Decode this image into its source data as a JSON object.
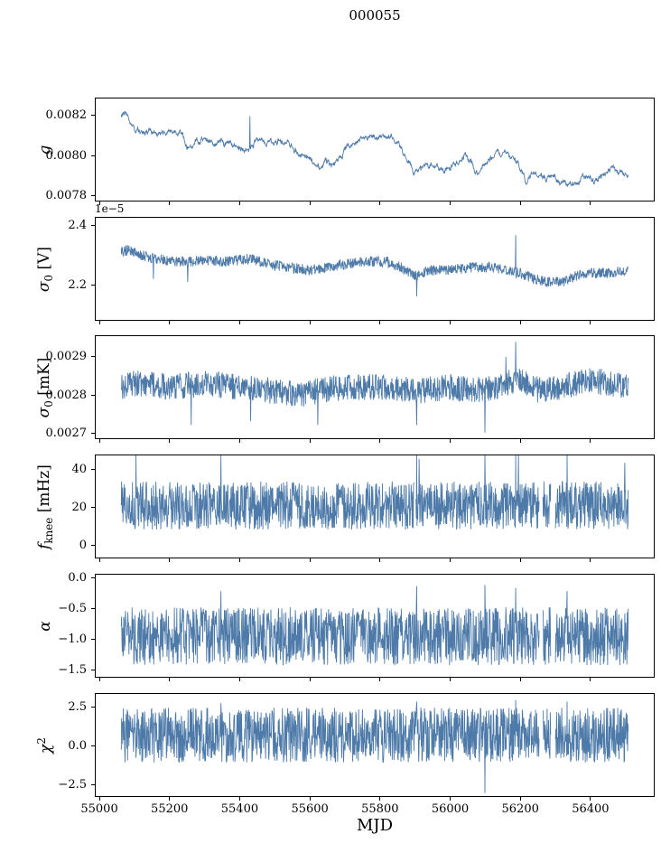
{
  "title": "000055",
  "line_color": "#4d7aa8",
  "spine_color": "#000000",
  "chart_data": {
    "type": "line",
    "title": "000055",
    "xlabel": "MJD",
    "legend": "none",
    "grid": false,
    "x": {
      "label": "MJD",
      "lim": [
        54987,
        56583
      ],
      "ticks": [
        55000,
        55200,
        55400,
        55600,
        55800,
        56000,
        56200,
        56400
      ],
      "data_range": [
        55060,
        56510
      ]
    },
    "panels": [
      {
        "name": "g",
        "ylabel": "g",
        "label_segments": [
          {
            "t": "g",
            "i": true
          }
        ],
        "ylim": [
          0.00777,
          0.00829
        ],
        "yticks": [
          {
            "v": 0.0078,
            "l": "0.0078"
          },
          {
            "v": 0.008,
            "l": "0.0080"
          },
          {
            "v": 0.0082,
            "l": "0.0082"
          }
        ],
        "offset": "",
        "noise": 2e-05,
        "ar": 0.85,
        "spikes": [
          [
            55428,
            0.0082
          ]
        ],
        "gaps": [],
        "mean": [
          [
            55060,
            0.0082
          ],
          [
            55072,
            0.00823
          ],
          [
            55085,
            0.00818
          ],
          [
            55100,
            0.00814
          ],
          [
            55130,
            0.00812
          ],
          [
            55160,
            0.00811
          ],
          [
            55190,
            0.00812
          ],
          [
            55215,
            0.00811
          ],
          [
            55235,
            0.00809
          ],
          [
            55250,
            0.00804
          ],
          [
            55262,
            0.00806
          ],
          [
            55285,
            0.00808
          ],
          [
            55310,
            0.00807
          ],
          [
            55340,
            0.00806
          ],
          [
            55370,
            0.00805
          ],
          [
            55400,
            0.00804
          ],
          [
            55425,
            0.00803
          ],
          [
            55445,
            0.00807
          ],
          [
            55465,
            0.00805
          ],
          [
            55490,
            0.00807
          ],
          [
            55510,
            0.00808
          ],
          [
            55530,
            0.00805
          ],
          [
            55555,
            0.00802
          ],
          [
            55580,
            0.008
          ],
          [
            55600,
            0.00797
          ],
          [
            55615,
            0.00794
          ],
          [
            55630,
            0.00793
          ],
          [
            55645,
            0.00799
          ],
          [
            55658,
            0.00795
          ],
          [
            55672,
            0.00796
          ],
          [
            55690,
            0.008
          ],
          [
            55710,
            0.00806
          ],
          [
            55730,
            0.00808
          ],
          [
            55755,
            0.00808
          ],
          [
            55775,
            0.0081
          ],
          [
            55800,
            0.0081
          ],
          [
            55825,
            0.00809
          ],
          [
            55850,
            0.00806
          ],
          [
            55872,
            0.00801
          ],
          [
            55895,
            0.00792
          ],
          [
            55910,
            0.00791
          ],
          [
            55930,
            0.00794
          ],
          [
            55950,
            0.00795
          ],
          [
            55975,
            0.00793
          ],
          [
            56000,
            0.00794
          ],
          [
            56025,
            0.00798
          ],
          [
            56045,
            0.008
          ],
          [
            56065,
            0.00795
          ],
          [
            56080,
            0.00792
          ],
          [
            56100,
            0.00796
          ],
          [
            56120,
            0.00799
          ],
          [
            56140,
            0.008
          ],
          [
            56160,
            0.00801
          ],
          [
            56180,
            0.00798
          ],
          [
            56200,
            0.00794
          ],
          [
            56218,
            0.00787
          ],
          [
            56235,
            0.00789
          ],
          [
            56255,
            0.00791
          ],
          [
            56275,
            0.00788
          ],
          [
            56295,
            0.0079
          ],
          [
            56315,
            0.00786
          ],
          [
            56335,
            0.00787
          ],
          [
            56355,
            0.00785
          ],
          [
            56375,
            0.00788
          ],
          [
            56395,
            0.00789
          ],
          [
            56415,
            0.00786
          ],
          [
            56435,
            0.0079
          ],
          [
            56455,
            0.00793
          ],
          [
            56475,
            0.00792
          ],
          [
            56495,
            0.00791
          ],
          [
            56510,
            0.00789
          ]
        ]
      },
      {
        "name": "sigma0-V",
        "ylabel": "σ0 [V]",
        "label_segments": [
          {
            "t": "σ",
            "i": true
          },
          {
            "t": "0",
            "sub": true
          },
          {
            "t": " [V]"
          }
        ],
        "ylim": [
          2.08,
          2.43
        ],
        "yticks": [
          {
            "v": 2.2,
            "l": "2.2"
          },
          {
            "v": 2.4,
            "l": "2.4"
          }
        ],
        "offset": "1e−5",
        "noise": 0.018,
        "ar": 0,
        "spikes": [
          [
            55152,
            2.22
          ],
          [
            55250,
            2.21
          ],
          [
            55905,
            2.16
          ],
          [
            56188,
            2.37
          ]
        ],
        "gaps": [],
        "mean": [
          [
            55060,
            2.31
          ],
          [
            55080,
            2.32
          ],
          [
            55120,
            2.3
          ],
          [
            55160,
            2.29
          ],
          [
            55200,
            2.28
          ],
          [
            55260,
            2.28
          ],
          [
            55300,
            2.285
          ],
          [
            55360,
            2.28
          ],
          [
            55430,
            2.29
          ],
          [
            55480,
            2.27
          ],
          [
            55540,
            2.26
          ],
          [
            55600,
            2.25
          ],
          [
            55650,
            2.26
          ],
          [
            55700,
            2.27
          ],
          [
            55760,
            2.28
          ],
          [
            55820,
            2.28
          ],
          [
            55860,
            2.26
          ],
          [
            55900,
            2.23
          ],
          [
            55940,
            2.25
          ],
          [
            56000,
            2.25
          ],
          [
            56060,
            2.26
          ],
          [
            56120,
            2.26
          ],
          [
            56160,
            2.25
          ],
          [
            56200,
            2.24
          ],
          [
            56240,
            2.22
          ],
          [
            56280,
            2.21
          ],
          [
            56320,
            2.21
          ],
          [
            56360,
            2.23
          ],
          [
            56400,
            2.24
          ],
          [
            56450,
            2.24
          ],
          [
            56510,
            2.25
          ]
        ]
      },
      {
        "name": "sigma0-mK",
        "ylabel": "σ0 [mK]",
        "label_segments": [
          {
            "t": "σ",
            "i": true
          },
          {
            "t": "0",
            "sub": true
          },
          {
            "t": " [mK]"
          }
        ],
        "ylim": [
          0.002685,
          0.002955
        ],
        "yticks": [
          {
            "v": 0.0027,
            "l": "0.0027"
          },
          {
            "v": 0.0028,
            "l": "0.0028"
          },
          {
            "v": 0.0029,
            "l": "0.0029"
          }
        ],
        "offset": "",
        "noise": 3.5e-05,
        "ar": 0,
        "spikes": [
          [
            55260,
            0.00272
          ],
          [
            55430,
            0.00273
          ],
          [
            55622,
            0.00272
          ],
          [
            55905,
            0.00272
          ],
          [
            56100,
            0.0027
          ],
          [
            56160,
            0.0029
          ],
          [
            56188,
            0.00294
          ]
        ],
        "gaps": [],
        "mean": [
          [
            55060,
            0.00282
          ],
          [
            55100,
            0.00283
          ],
          [
            55200,
            0.00282
          ],
          [
            55300,
            0.00283
          ],
          [
            55400,
            0.00282
          ],
          [
            55500,
            0.00281
          ],
          [
            55560,
            0.0028
          ],
          [
            55620,
            0.00281
          ],
          [
            55700,
            0.00282
          ],
          [
            55800,
            0.00282
          ],
          [
            55900,
            0.00281
          ],
          [
            56000,
            0.00282
          ],
          [
            56100,
            0.00281
          ],
          [
            56160,
            0.00283
          ],
          [
            56200,
            0.00284
          ],
          [
            56260,
            0.00281
          ],
          [
            56320,
            0.00282
          ],
          [
            56400,
            0.00284
          ],
          [
            56450,
            0.00283
          ],
          [
            56510,
            0.00282
          ]
        ]
      },
      {
        "name": "fknee",
        "ylabel": "fknee [mHz]",
        "label_segments": [
          {
            "t": "f",
            "i": true
          },
          {
            "t": "knee",
            "sub": true
          },
          {
            "t": " [mHz]"
          }
        ],
        "ylim": [
          -7,
          48
        ],
        "yticks": [
          {
            "v": 0,
            "l": "0"
          },
          {
            "v": 20,
            "l": "20"
          },
          {
            "v": 40,
            "l": "40"
          }
        ],
        "offset": "",
        "noise": 13,
        "ar": 0,
        "spikes": [
          [
            55102,
            50
          ],
          [
            55345,
            52
          ],
          [
            55905,
            50
          ],
          [
            55912,
            46
          ],
          [
            56100,
            50
          ],
          [
            56188,
            52
          ],
          [
            56196,
            48
          ],
          [
            56335,
            50
          ],
          [
            56500,
            44
          ]
        ],
        "gaps": [
          [
            55897,
            55902
          ],
          [
            56255,
            56266
          ],
          [
            56288,
            56302
          ]
        ],
        "mean": [
          [
            55060,
            21
          ],
          [
            56510,
            21
          ]
        ]
      },
      {
        "name": "alpha",
        "ylabel": "α",
        "label_segments": [
          {
            "t": "α",
            "i": true
          }
        ],
        "ylim": [
          -1.62,
          0.07
        ],
        "yticks": [
          {
            "v": 0,
            "l": "0.0"
          },
          {
            "v": -0.5,
            "l": "−0.5"
          },
          {
            "v": -1,
            "l": "−1.0"
          },
          {
            "v": -1.5,
            "l": "−1.5"
          }
        ],
        "offset": "",
        "noise": 0.48,
        "ar": 0,
        "spikes": [
          [
            55345,
            -0.2
          ],
          [
            55905,
            -0.12
          ],
          [
            56100,
            -0.1
          ],
          [
            56188,
            -0.15
          ],
          [
            56335,
            -0.2
          ]
        ],
        "gaps": [
          [
            56255,
            56266
          ],
          [
            56288,
            56302
          ]
        ],
        "mean": [
          [
            55060,
            -0.95
          ],
          [
            56510,
            -0.95
          ]
        ]
      },
      {
        "name": "chi2",
        "ylabel": "χ2",
        "label_segments": [
          {
            "t": "χ",
            "i": true
          },
          {
            "t": "2",
            "sup": true
          }
        ],
        "ylim": [
          -3.3,
          3.4
        ],
        "yticks": [
          {
            "v": 2.5,
            "l": "2.5"
          },
          {
            "v": 0,
            "l": "0.0"
          },
          {
            "v": -2.5,
            "l": "−2.5"
          }
        ],
        "offset": "",
        "noise": 1.8,
        "ar": 0,
        "spikes": [
          [
            55345,
            2.8
          ],
          [
            55905,
            2.9
          ],
          [
            56100,
            -3.1
          ],
          [
            56188,
            3.0
          ],
          [
            56335,
            2.9
          ]
        ],
        "gaps": [
          [
            56255,
            56266
          ],
          [
            56288,
            56302
          ]
        ],
        "mean": [
          [
            55060,
            0.7
          ],
          [
            56510,
            0.7
          ]
        ]
      }
    ]
  }
}
